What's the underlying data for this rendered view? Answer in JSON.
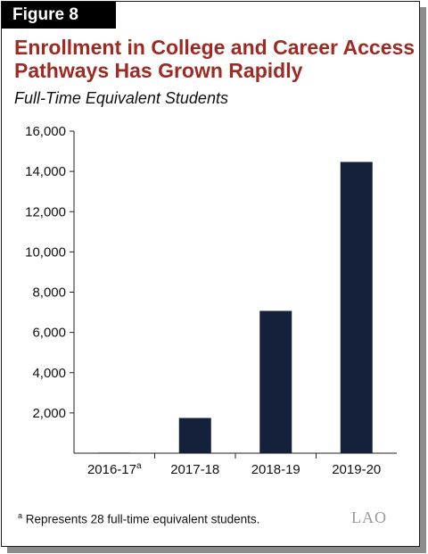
{
  "figure_label": "Figure 8",
  "title": "Enrollment in College and Career Access Pathways Has Grown Rapidly",
  "subtitle": "Full-Time Equivalent Students",
  "footnote": {
    "marker": "a",
    "text": "Represents 28 full-time equivalent students."
  },
  "logo": "LAO",
  "chart_data": {
    "type": "bar",
    "categories": [
      "2016-17",
      "2017-18",
      "2018-19",
      "2019-20"
    ],
    "category_superscripts": [
      "a",
      "",
      "",
      ""
    ],
    "values": [
      28,
      1750,
      7070,
      14470
    ],
    "yticks": [
      "2,000",
      "4,000",
      "6,000",
      "8,000",
      "10,000",
      "12,000",
      "14,000",
      "16,000"
    ],
    "ytick_values": [
      2000,
      4000,
      6000,
      8000,
      10000,
      12000,
      14000,
      16000
    ],
    "ylim": [
      0,
      16000
    ],
    "bar_color": "#15213a",
    "grid": false,
    "legend": "none"
  }
}
